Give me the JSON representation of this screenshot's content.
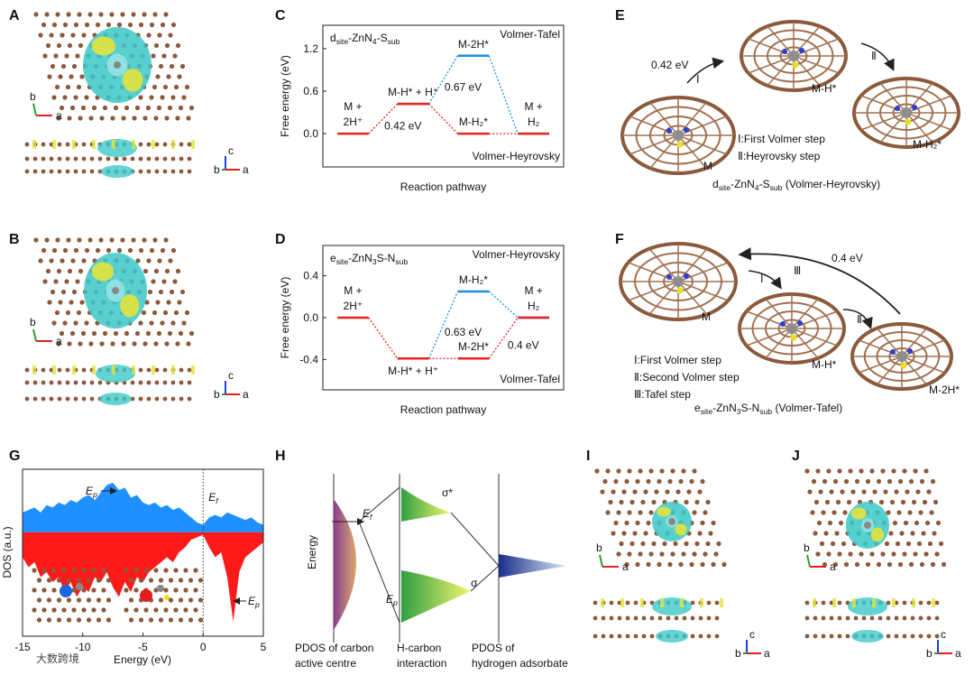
{
  "panels": {
    "labels": [
      "A",
      "B",
      "C",
      "D",
      "E",
      "F",
      "G",
      "H",
      "I",
      "J"
    ]
  },
  "chart_data": [
    {
      "type": "energy",
      "title": [
        "d",
        "site",
        "-ZnN",
        "4",
        "-S",
        "sub"
      ],
      "y_label": "Free energy (eV)",
      "x_label": "Reaction pathway",
      "ylim": [
        -0.47,
        1.53
      ],
      "yticks": [
        {
          "value": 0,
          "label": "0.0"
        },
        {
          "value": 0.6,
          "label": "0.6"
        },
        {
          "value": 1.2,
          "label": "1.2"
        }
      ],
      "series": [
        {
          "name": "Volmer-Tafel",
          "color": "#1a8fe3",
          "values": [
            null,
            0.42,
            1.1,
            0
          ],
          "labels": [
            null,
            null,
            [
              "M-2H*"
            ],
            null
          ],
          "barrier": "0.67 eV"
        },
        {
          "name": "Volmer-Heyrovsky",
          "color": "#e8241c",
          "values": [
            0,
            0.42,
            0,
            0
          ],
          "labels": [
            [
              "M +",
              "2H⁺"
            ],
            [
              "M-H* + H⁺"
            ],
            [
              "M-H₂*"
            ],
            [
              "M +",
              "H₂"
            ]
          ],
          "barrier": "0.42 eV"
        }
      ]
    },
    {
      "type": "energy",
      "title": [
        "e",
        "site",
        "-ZnN",
        "3",
        "S-N",
        "sub"
      ],
      "y_label": "Free energy (eV)",
      "x_label": "Reaction pathway",
      "ylim": [
        -0.69,
        0.69
      ],
      "yticks": [
        {
          "value": -0.4,
          "label": "-0.4"
        },
        {
          "value": 0,
          "label": "0.0"
        },
        {
          "value": 0.4,
          "label": "0.4"
        }
      ],
      "series": [
        {
          "name": "Volmer-Heyrovsky",
          "color": "#1a8fe3",
          "values": [
            null,
            -0.39,
            0.25,
            0
          ],
          "labels": [
            null,
            null,
            [
              "M-H₂*"
            ],
            null
          ],
          "barrier": "0.63 eV"
        },
        {
          "name": "Volmer-Tafel",
          "color": "#e8241c",
          "values": [
            0,
            -0.39,
            -0.39,
            0
          ],
          "labels": [
            [
              "M +",
              "2H⁺"
            ],
            [
              "M-H* + H⁺"
            ],
            [
              "M-2H*"
            ],
            [
              "M +",
              "H₂"
            ]
          ],
          "barrier": "0.4 eV"
        }
      ]
    },
    {
      "type": "area",
      "y_label": "DOS (a.u.)",
      "x_label": "Energy (eV)",
      "xlim": [
        -15,
        5
      ],
      "xticks": [
        -15,
        -10,
        -5,
        0,
        5
      ],
      "ylim": [
        -2.09,
        1.27
      ],
      "x": [
        -15,
        -14.5,
        -14,
        -13.5,
        -13,
        -12.5,
        -12,
        -11.5,
        -11,
        -10.5,
        -10,
        -9.5,
        -9,
        -8.5,
        -8,
        -7.5,
        -7,
        -6.5,
        -6,
        -5.5,
        -5,
        -4.5,
        -4,
        -3.5,
        -3,
        -2.5,
        -2,
        -1.5,
        -1,
        -0.5,
        0,
        0.5,
        1,
        1.5,
        2,
        2.5,
        3,
        3.5,
        4,
        4.5,
        5
      ],
      "series": [
        {
          "color": "#1e90ff",
          "values": [
            0.4,
            0.45,
            0.5,
            0.4,
            0.55,
            0.5,
            0.6,
            0.55,
            0.65,
            0.6,
            0.7,
            0.75,
            0.65,
            0.8,
            0.95,
            1.0,
            0.85,
            0.9,
            0.7,
            0.75,
            0.6,
            0.55,
            0.6,
            0.5,
            0.55,
            0.45,
            0.5,
            0.4,
            0.3,
            0.2,
            0.15,
            0.3,
            0.35,
            0.3,
            0.4,
            0.35,
            0.3,
            0.25,
            0.3,
            0.2,
            0.15
          ]
        },
        {
          "color": "#ff1a1a",
          "values": [
            -0.5,
            -0.7,
            -0.6,
            -0.9,
            -0.8,
            -1.0,
            -0.9,
            -1.2,
            -1.0,
            -1.3,
            -1.1,
            -1.2,
            -0.9,
            -1.0,
            -0.8,
            -1.1,
            -1.3,
            -1.0,
            -1.2,
            -0.9,
            -1.0,
            -0.8,
            -0.7,
            -0.6,
            -0.5,
            -0.6,
            -0.4,
            -0.3,
            -0.15,
            -0.1,
            -0.05,
            -0.3,
            -0.5,
            -0.4,
            -0.9,
            -1.8,
            -0.8,
            -0.5,
            -0.4,
            -0.3,
            -0.2
          ]
        }
      ],
      "ep_top": [
        "E",
        "p"
      ],
      "ep_bottom": [
        "E",
        "p"
      ],
      "ef": {
        "label": [
          "E",
          "f"
        ],
        "x": 0
      }
    }
  ],
  "structures": {
    "A": {
      "axes_2d": [
        "b",
        "a"
      ],
      "axes_3d": [
        "c",
        "b",
        "a"
      ]
    },
    "B": {
      "axes_2d": [
        "b",
        "a"
      ],
      "axes_3d": [
        "c",
        "b",
        "a"
      ]
    },
    "I": {
      "axes_2d": [
        "b",
        "a"
      ],
      "axes_3d": [
        "c",
        "b",
        "a"
      ]
    },
    "J": {
      "axes_2d": [
        "b",
        "a"
      ],
      "axes_3d": [
        "c",
        "b",
        "a"
      ]
    },
    "E": {
      "barrier": "0.42 eV",
      "steps": [
        "Ⅰ",
        "Ⅱ"
      ],
      "states": [
        "M",
        "M-H*",
        "M-H₂*"
      ],
      "legend": [
        "Ⅰ:First Volmer step",
        "Ⅱ:Heyrovsky step"
      ],
      "caption": [
        "d",
        "site",
        "-ZnN",
        "4",
        "-S",
        "sub",
        " (Volmer-Heyrovsky)"
      ]
    },
    "F": {
      "barrier": "0.4 eV",
      "steps": [
        "Ⅰ",
        "Ⅱ",
        "Ⅲ"
      ],
      "states": [
        "M",
        "M-H*",
        "M-2H*"
      ],
      "legend": [
        "Ⅰ:First Volmer step",
        "Ⅱ:Second Volmer step",
        "Ⅲ:Tafel step"
      ],
      "caption": [
        "e",
        "site",
        "-ZnN",
        "3",
        "S-N",
        "sub",
        " (Volmer-Tafel)"
      ]
    }
  },
  "diagram_h": {
    "energy_label": "Energy",
    "ef": [
      "E",
      "f"
    ],
    "sigma_star": "σ*",
    "sigma": "σ",
    "ep": [
      "E",
      "p"
    ],
    "captions": [
      [
        "PDOS of carbon",
        "active centre"
      ],
      [
        "H-carbon",
        "interaction"
      ],
      [
        "PDOS of",
        "hydrogen adsorbate"
      ]
    ]
  },
  "watermark": "大数跨境"
}
